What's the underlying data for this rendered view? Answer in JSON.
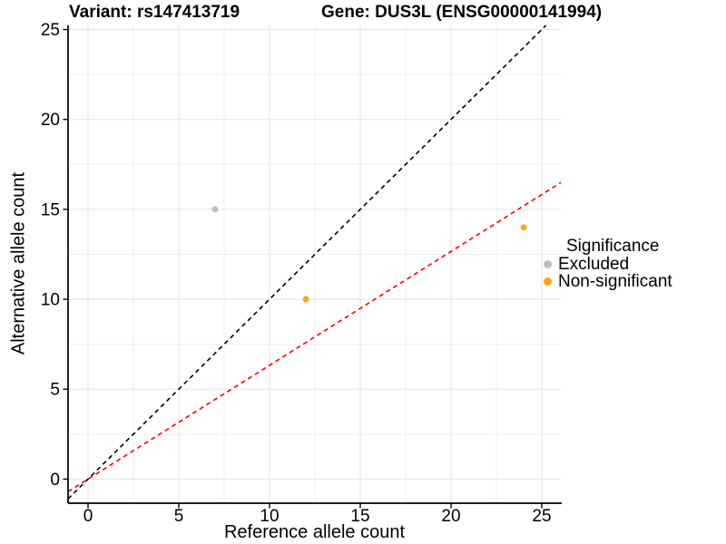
{
  "chart_data": {
    "type": "scatter",
    "title_left": "Variant: rs147413719",
    "title_right": "Gene: DUS3L (ENSG00000141994)",
    "xlabel": "Reference allele count",
    "ylabel": "Alternative allele count",
    "xlim": [
      -1.1,
      26.05
    ],
    "ylim": [
      -1.34,
      25.23
    ],
    "x_major_ticks": [
      0,
      5,
      10,
      15,
      20,
      25
    ],
    "y_major_ticks": [
      0,
      5,
      10,
      15,
      20,
      25
    ],
    "x_minor_ticks": [
      2.5,
      7.5,
      12.5,
      17.5,
      22.5
    ],
    "y_minor_ticks": [
      2.5,
      7.5,
      12.5,
      17.5,
      22.5
    ],
    "grid": "major+minor",
    "series": [
      {
        "name": "Excluded",
        "color": "#BDBDBD",
        "points": [
          [
            7,
            15
          ]
        ]
      },
      {
        "name": "Non-significant",
        "color": "#FFA500",
        "points": [
          [
            12,
            10
          ],
          [
            24,
            14
          ]
        ]
      }
    ],
    "ablines": [
      {
        "name": "identity-line",
        "slope": 1,
        "intercept": 0,
        "color": "#000000",
        "style": "dashed"
      },
      {
        "name": "expected-ratio-line",
        "slope": 0.633,
        "intercept": 0,
        "color": "#FF0000",
        "style": "dashed"
      }
    ],
    "legend": {
      "title": "Significance",
      "position": "right",
      "items": [
        {
          "label": "Excluded",
          "color": "#BDBDBD"
        },
        {
          "label": "Non-significant",
          "color": "#FFA500"
        }
      ]
    },
    "style_colors": {
      "major_grid": "#E3E3E3",
      "minor_grid": "#F0F0F0",
      "axis_line": "#000000",
      "tick_text": "#000000"
    }
  }
}
